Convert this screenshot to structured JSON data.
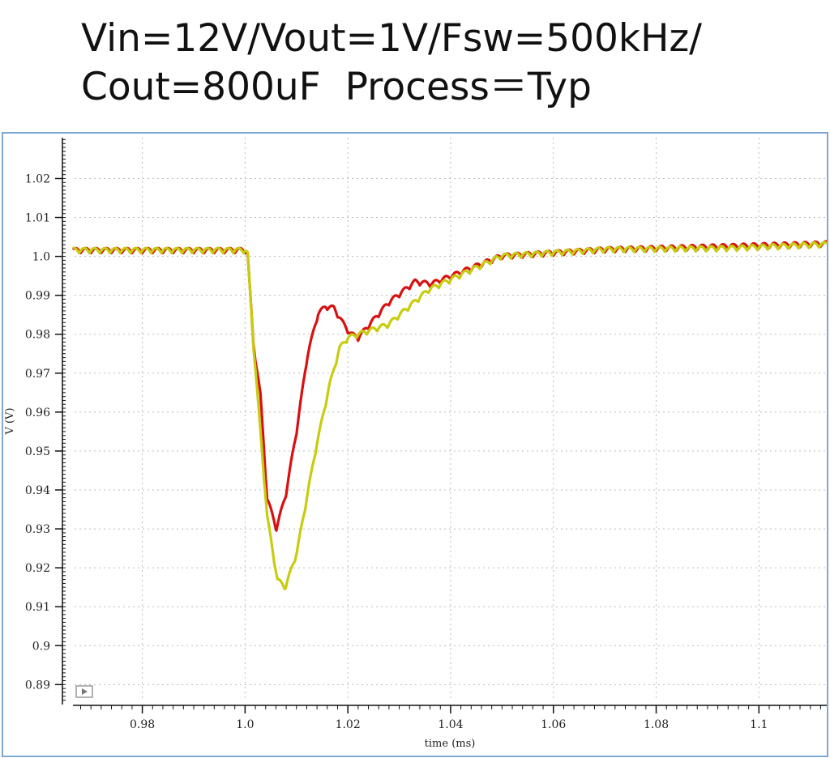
{
  "title": {
    "line1": "Vin=12V/Vout=1V/Fsw=500kHz/",
    "line2": "Cout=800uF  Process＝Typ"
  },
  "chart_data": {
    "type": "line",
    "title": "Vin=12V/Vout=1V/Fsw=500kHz/ Cout=800uF Process=Typ",
    "xlabel": "time (ms)",
    "ylabel": "V (V)",
    "xlim": [
      0.9665,
      1.1132
    ],
    "ylim": [
      0.8857,
      1.0305
    ],
    "grid": true,
    "x_ticks": [
      0.98,
      1.0,
      1.02,
      1.04,
      1.06,
      1.08,
      1.1
    ],
    "x_tick_labels": [
      "0.98",
      "1.0",
      "1.02",
      "1.04",
      "1.06",
      "1.08",
      "1.1"
    ],
    "y_ticks": [
      1.02,
      1.01,
      1.0,
      0.99,
      0.98,
      0.97,
      0.96,
      0.95,
      0.94,
      0.93,
      0.92,
      0.91,
      0.9,
      0.89
    ],
    "y_tick_labels": [
      "1.02",
      "1.01",
      "1.0",
      "0.99",
      "0.98",
      "0.97",
      "0.96",
      "0.95",
      "0.94",
      "0.93",
      "0.92",
      "0.91",
      "0.9",
      "0.89"
    ],
    "ripple": {
      "period_ms": 0.002,
      "amplitude_v": 0.0013
    },
    "series": [
      {
        "name": "red",
        "color": "#d81010",
        "x": [
          0.9665,
          1.0,
          1.0005,
          1.0016,
          1.003,
          1.0043,
          1.0061,
          1.0079,
          1.0101,
          1.0121,
          1.0142,
          1.0157,
          1.0173,
          1.0189,
          1.0205,
          1.022,
          1.0279,
          1.0331,
          1.0362,
          1.0499,
          1.0704,
          1.094,
          1.1132
        ],
        "y": [
          1.0015,
          1.0015,
          1.0005,
          0.9777,
          0.964,
          0.9377,
          0.93,
          0.9386,
          0.9557,
          0.9742,
          0.9852,
          0.987,
          0.9866,
          0.983,
          0.98,
          0.979,
          0.988,
          0.9934,
          0.9928,
          1.0,
          1.0017,
          1.0025,
          1.0032
        ]
      },
      {
        "name": "yellow",
        "color": "#c8cc10",
        "x": [
          0.9665,
          1.0,
          1.0005,
          1.0016,
          1.0043,
          1.0063,
          1.0079,
          1.0101,
          1.0137,
          1.0164,
          1.0184,
          1.02,
          1.0279,
          1.0357,
          1.0499,
          1.0704,
          1.094,
          1.1132
        ],
        "y": [
          1.0015,
          1.0015,
          1.0005,
          0.9777,
          0.933,
          0.9167,
          0.915,
          0.924,
          0.95,
          0.9666,
          0.9763,
          0.979,
          0.9824,
          0.9913,
          1.0,
          1.0017,
          1.002,
          1.003
        ]
      }
    ]
  }
}
